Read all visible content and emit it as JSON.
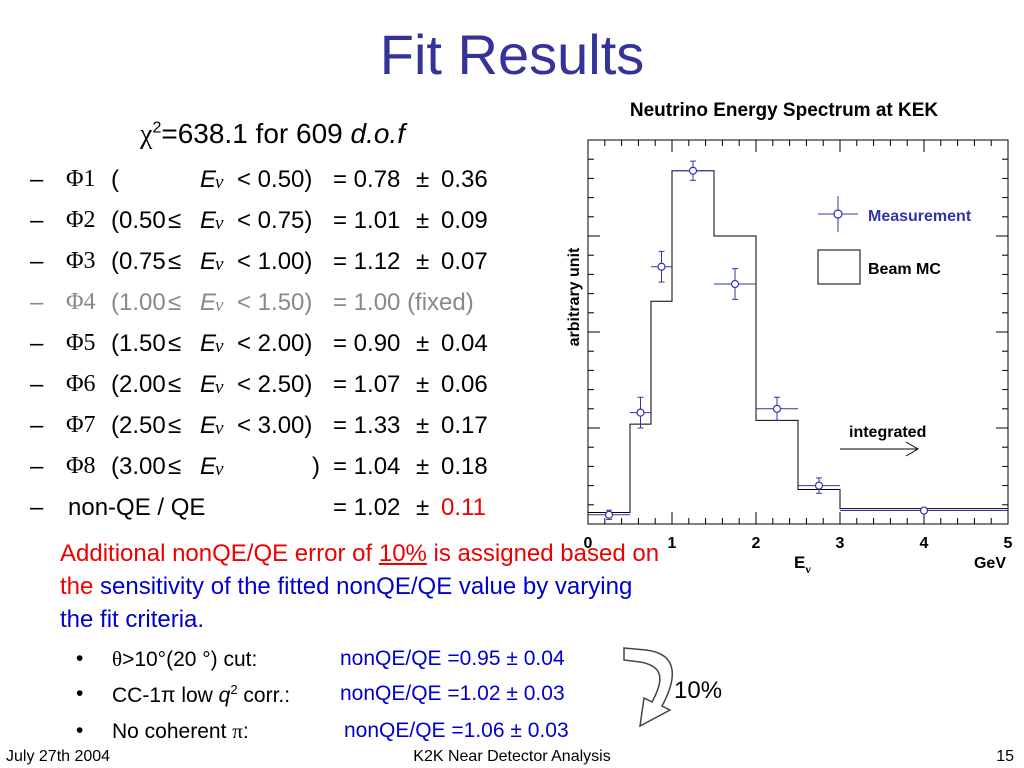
{
  "slide": {
    "title": "Fit Results",
    "chi2": {
      "prefix": "χ",
      "sup": "2",
      "mid": "=638.1 for 609 ",
      "dof": "d.o.f"
    },
    "params": [
      {
        "bullet": "–",
        "phi": "Φ1",
        "open": "(",
        "le": "",
        "ev": "E",
        "nu": "ν",
        "op": "< 0.50)",
        "result": "= 0.78",
        "pm": "±",
        "err": "0.36",
        "state": "normal"
      },
      {
        "bullet": "–",
        "phi": "Φ2",
        "open": "(0.50",
        "le": "≤",
        "ev": "E",
        "nu": "ν",
        "op": "< 0.75)",
        "result": "= 1.01",
        "pm": "±",
        "err": "0.09",
        "state": "normal"
      },
      {
        "bullet": "–",
        "phi": "Φ3",
        "open": "(0.75",
        "le": "≤",
        "ev": "E",
        "nu": "ν",
        "op": "< 1.00)",
        "result": "= 1.12",
        "pm": "±",
        "err": "0.07",
        "state": "normal"
      },
      {
        "bullet": "–",
        "phi": "Φ4",
        "open": "(1.00",
        "le": "≤",
        "ev": "E",
        "nu": "ν",
        "op": "< 1.50)",
        "result": "= 1.00 (fixed)",
        "pm": "",
        "err": "",
        "state": "fixed"
      },
      {
        "bullet": "–",
        "phi": "Φ5",
        "open": "(1.50",
        "le": "≤",
        "ev": "E",
        "nu": "ν",
        "op": "< 2.00)",
        "result": "= 0.90",
        "pm": "±",
        "err": "0.04",
        "state": "normal"
      },
      {
        "bullet": "–",
        "phi": "Φ6",
        "open": "(2.00",
        "le": "≤",
        "ev": "E",
        "nu": "ν",
        "op": "< 2.50)",
        "result": "= 1.07",
        "pm": "±",
        "err": "0.06",
        "state": "normal"
      },
      {
        "bullet": "–",
        "phi": "Φ7",
        "open": "(2.50",
        "le": "≤",
        "ev": "E",
        "nu": "ν",
        "op": "< 3.00)",
        "result": "= 1.33",
        "pm": "±",
        "err": "0.17",
        "state": "normal"
      },
      {
        "bullet": "–",
        "phi": "Φ8",
        "open": "(3.00",
        "le": "≤",
        "ev": "E",
        "nu": "ν",
        "op": ")",
        "result": "= 1.04",
        "pm": "±",
        "err": "0.18",
        "state": "normal"
      },
      {
        "bullet": "–",
        "phi": "",
        "open": "non-QE / QE",
        "le": "",
        "ev": "",
        "nu": "",
        "op": "",
        "result": "= 1.02",
        "pm": "±",
        "err": "0.11",
        "state": "redErr"
      }
    ],
    "note": {
      "part1": "Additional nonQE/QE error of ",
      "underlined": "10%",
      "part2": " is assigned based on the ",
      "part3": "sensitivity of the fitted nonQE/QE value by varying the fit criteria."
    },
    "subs": [
      {
        "bullet": "•",
        "label_a": "θ",
        "label_b": ">10°(20 °) cut:",
        "result": "nonQE/QE =0.95",
        "pm": "±",
        "err": "0.04"
      },
      {
        "bullet": "•",
        "label_a": "CC-1π low ",
        "label_q": "q",
        "label_sup": "2",
        "label_b": " corr.:",
        "result": "nonQE/QE =1.02",
        "pm": "±",
        "err": "0.03"
      },
      {
        "bullet": "•",
        "label_a": "No coherent ",
        "label_pi": "π",
        "label_b": ":",
        "result": "nonQE/QE =1.06",
        "pm": "±",
        "err": "0.03"
      }
    ],
    "brace_label": "10%",
    "footer": {
      "date": "July 27th 2004",
      "center": "K2K Near Detector Analysis",
      "page": "15"
    }
  },
  "chart_data": {
    "type": "scatter",
    "title": "Neutrino Energy Spectrum at KEK",
    "xlabel_main": "E",
    "xlabel_sub": "ν",
    "xlabel_unit": "GeV",
    "ylabel": "arbitrary unit",
    "xlim": [
      0,
      5
    ],
    "ylim": [
      0,
      1
    ],
    "x_ticks": [
      "0",
      "1",
      "2",
      "3",
      "4",
      "5"
    ],
    "legend": {
      "measurement": "Measurement",
      "mc": "Beam MC",
      "placement": "top-right"
    },
    "annotation": "integrated",
    "colors": {
      "measurement": "#3333aa",
      "mc": "#000000"
    },
    "mc_histogram": {
      "edges": [
        0,
        0.5,
        0.75,
        1.0,
        1.5,
        2.0,
        2.5,
        3.0,
        5.0
      ],
      "values": [
        0.03,
        0.26,
        0.58,
        0.92,
        0.75,
        0.27,
        0.09,
        0.04
      ]
    },
    "measurement": [
      {
        "x": 0.25,
        "xerr": 0.25,
        "y": 0.024,
        "yerr": 0.012
      },
      {
        "x": 0.625,
        "xerr": 0.125,
        "y": 0.29,
        "yerr": 0.04
      },
      {
        "x": 0.875,
        "xerr": 0.125,
        "y": 0.67,
        "yerr": 0.04
      },
      {
        "x": 1.25,
        "xerr": 0.25,
        "y": 0.92,
        "yerr": 0.025
      },
      {
        "x": 1.75,
        "xerr": 0.25,
        "y": 0.625,
        "yerr": 0.04
      },
      {
        "x": 2.25,
        "xerr": 0.25,
        "y": 0.3,
        "yerr": 0.03
      },
      {
        "x": 2.75,
        "xerr": 0.25,
        "y": 0.1,
        "yerr": 0.02
      },
      {
        "x": 4.0,
        "xerr": 1.0,
        "y": 0.035,
        "yerr": 0.0
      }
    ]
  }
}
